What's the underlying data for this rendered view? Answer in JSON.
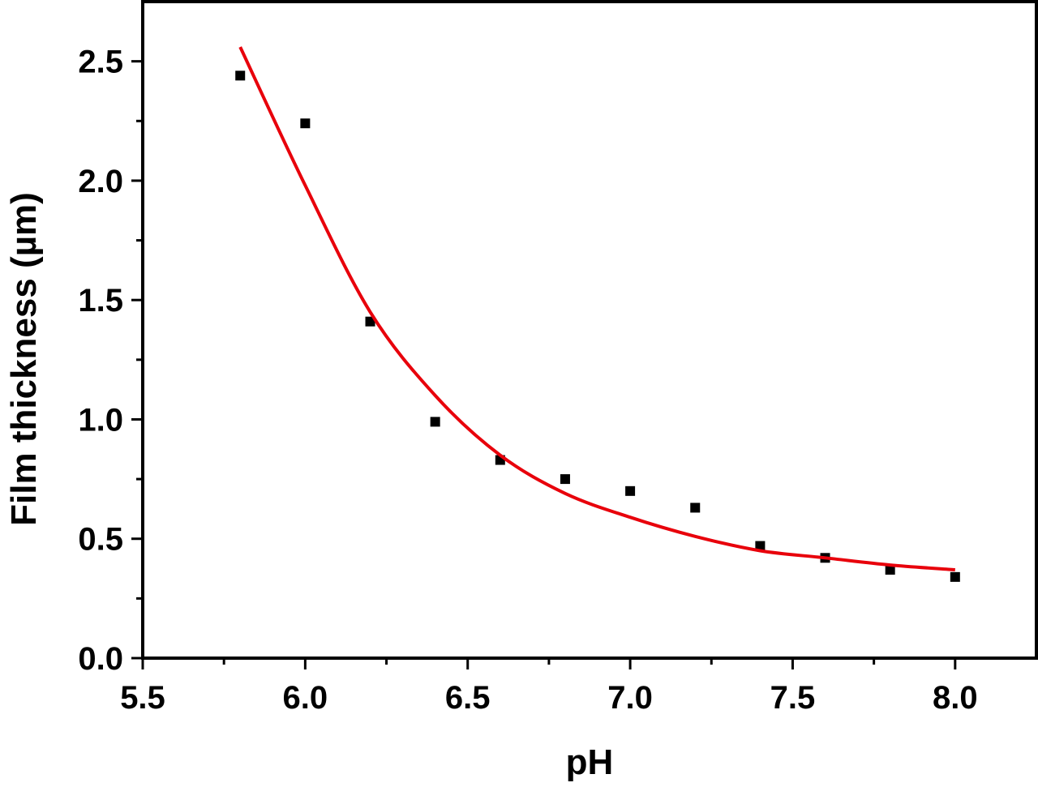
{
  "chart_data": {
    "type": "scatter",
    "xlabel": "pH",
    "ylabel": "Film thickness (µm)",
    "xlim": [
      5.5,
      8.25
    ],
    "ylim": [
      0.0,
      2.75
    ],
    "xticks": [
      "5.5",
      "6.0",
      "6.5",
      "7.0",
      "7.5",
      "8.0"
    ],
    "yticks": [
      "0.0",
      "0.5",
      "1.0",
      "1.5",
      "2.0",
      "2.5"
    ],
    "grid": false,
    "legend": "none",
    "series": [
      {
        "kind": "scatter",
        "marker": "square",
        "color": "#000000",
        "x": [
          5.8,
          6.0,
          6.2,
          6.4,
          6.6,
          6.8,
          7.0,
          7.2,
          7.4,
          7.6,
          7.8,
          8.0
        ],
        "y": [
          2.44,
          2.24,
          1.41,
          0.99,
          0.83,
          0.75,
          0.7,
          0.63,
          0.47,
          0.42,
          0.37,
          0.34
        ]
      },
      {
        "kind": "line",
        "color": "#e8000b",
        "x": [
          5.8,
          6.0,
          6.2,
          6.4,
          6.6,
          6.8,
          7.0,
          7.2,
          7.4,
          7.6,
          7.8,
          8.0
        ],
        "y": [
          2.56,
          1.98,
          1.45,
          1.1,
          0.85,
          0.69,
          0.59,
          0.51,
          0.45,
          0.42,
          0.39,
          0.37
        ]
      }
    ]
  }
}
